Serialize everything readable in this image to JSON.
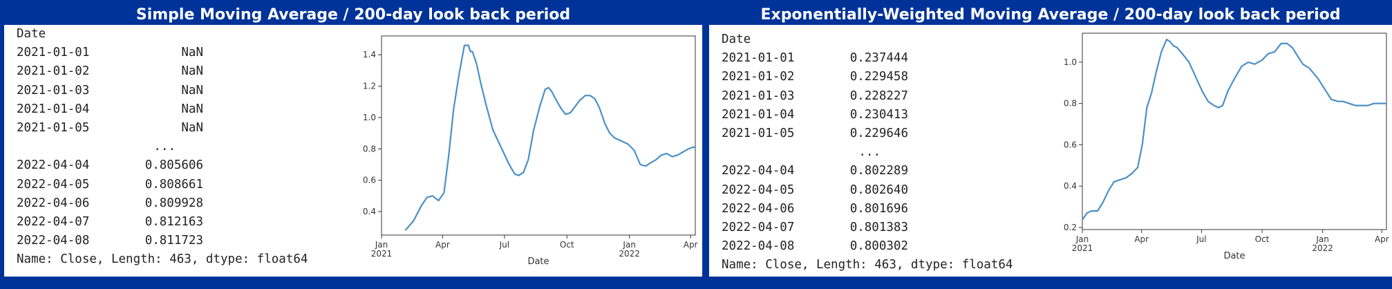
{
  "panels": [
    {
      "title": "Simple Moving Average / 200-day look back period",
      "series_text": {
        "index_name": "Date",
        "head": [
          {
            "date": "2021-01-01",
            "value": "NaN"
          },
          {
            "date": "2021-01-02",
            "value": "NaN"
          },
          {
            "date": "2021-01-03",
            "value": "NaN"
          },
          {
            "date": "2021-01-04",
            "value": "NaN"
          },
          {
            "date": "2021-01-05",
            "value": "NaN"
          }
        ],
        "ellipsis": "...",
        "tail": [
          {
            "date": "2022-04-04",
            "value": "0.805606"
          },
          {
            "date": "2022-04-05",
            "value": "0.808661"
          },
          {
            "date": "2022-04-06",
            "value": "0.809928"
          },
          {
            "date": "2022-04-07",
            "value": "0.812163"
          },
          {
            "date": "2022-04-08",
            "value": "0.811723"
          }
        ],
        "footer": "Name: Close, Length: 463, dtype: float64"
      }
    },
    {
      "title": "Exponentially-Weighted  Moving Average / 200-day look back period",
      "series_text": {
        "index_name": "Date",
        "head": [
          {
            "date": "2021-01-01",
            "value": "0.237444"
          },
          {
            "date": "2021-01-02",
            "value": "0.229458"
          },
          {
            "date": "2021-01-03",
            "value": "0.228227"
          },
          {
            "date": "2021-01-04",
            "value": "0.230413"
          },
          {
            "date": "2021-01-05",
            "value": "0.229646"
          }
        ],
        "ellipsis": "...",
        "tail": [
          {
            "date": "2022-04-04",
            "value": "0.802289"
          },
          {
            "date": "2022-04-05",
            "value": "0.802640"
          },
          {
            "date": "2022-04-06",
            "value": "0.801696"
          },
          {
            "date": "2022-04-07",
            "value": "0.801383"
          },
          {
            "date": "2022-04-08",
            "value": "0.800302"
          }
        ],
        "footer": "Name: Close, Length: 463, dtype: float64"
      }
    }
  ],
  "chart_data": [
    {
      "type": "line",
      "title": "",
      "xlabel": "Date",
      "ylabel": "",
      "xlim": [
        "2021-01-01",
        "2022-04-08"
      ],
      "ylim": [
        0.25,
        1.52
      ],
      "yticks": [
        0.4,
        0.6,
        0.8,
        1.0,
        1.2,
        1.4
      ],
      "ytick_labels": [
        "0.4",
        "0.6",
        "0.8",
        "1.0",
        "1.2",
        "1.4"
      ],
      "xticks": [
        {
          "date": "2021-01-01",
          "label": "Jan",
          "sublabel": "2021"
        },
        {
          "date": "2021-04-01",
          "label": "Apr",
          "sublabel": ""
        },
        {
          "date": "2021-07-01",
          "label": "Jul",
          "sublabel": ""
        },
        {
          "date": "2021-10-01",
          "label": "Oct",
          "sublabel": ""
        },
        {
          "date": "2022-01-01",
          "label": "Jan",
          "sublabel": "2022"
        },
        {
          "date": "2022-04-01",
          "label": "Apr",
          "sublabel": ""
        }
      ],
      "line_color": "#4a8fc7",
      "grid": false,
      "series": [
        {
          "x": [
            "2021-02-05",
            "2021-02-17",
            "2021-03-01",
            "2021-03-09",
            "2021-03-17",
            "2021-03-26",
            "2021-04-03",
            "2021-04-10",
            "2021-04-17",
            "2021-04-25",
            "2021-05-03",
            "2021-05-09",
            "2021-05-12",
            "2021-05-15",
            "2021-05-18",
            "2021-05-21",
            "2021-05-27",
            "2021-06-04",
            "2021-06-14",
            "2021-06-26",
            "2021-07-08",
            "2021-07-16",
            "2021-07-22",
            "2021-07-29",
            "2021-08-05",
            "2021-08-13",
            "2021-08-22",
            "2021-08-30",
            "2021-09-04",
            "2021-09-08",
            "2021-09-14",
            "2021-09-22",
            "2021-09-29",
            "2021-10-06",
            "2021-10-13",
            "2021-10-20",
            "2021-10-28",
            "2021-11-04",
            "2021-11-11",
            "2021-11-18",
            "2021-11-26",
            "2021-12-03",
            "2021-12-10",
            "2021-12-20",
            "2021-12-30",
            "2022-01-08",
            "2022-01-17",
            "2022-01-25",
            "2022-02-01",
            "2022-02-09",
            "2022-02-17",
            "2022-02-25",
            "2022-03-05",
            "2022-03-13",
            "2022-03-21",
            "2022-03-29",
            "2022-04-04",
            "2022-04-08"
          ],
          "y": [
            0.28,
            0.34,
            0.44,
            0.49,
            0.5,
            0.47,
            0.52,
            0.76,
            1.05,
            1.27,
            1.46,
            1.46,
            1.42,
            1.42,
            1.38,
            1.34,
            1.22,
            1.08,
            0.92,
            0.81,
            0.7,
            0.64,
            0.63,
            0.65,
            0.73,
            0.92,
            1.07,
            1.18,
            1.19,
            1.17,
            1.12,
            1.06,
            1.02,
            1.03,
            1.07,
            1.11,
            1.14,
            1.14,
            1.12,
            1.06,
            0.96,
            0.9,
            0.87,
            0.85,
            0.83,
            0.79,
            0.7,
            0.69,
            0.71,
            0.73,
            0.76,
            0.77,
            0.75,
            0.76,
            0.78,
            0.8,
            0.81,
            0.81
          ]
        }
      ]
    },
    {
      "type": "line",
      "title": "",
      "xlabel": "Date",
      "ylabel": "",
      "xlim": [
        "2021-01-01",
        "2022-04-08"
      ],
      "ylim": [
        0.19,
        1.14
      ],
      "yticks": [
        0.2,
        0.4,
        0.6,
        0.8,
        1.0
      ],
      "ytick_labels": [
        "0.2",
        "0.4",
        "0.6",
        "0.8",
        "1.0"
      ],
      "xticks": [
        {
          "date": "2021-01-01",
          "label": "Jan",
          "sublabel": "2021"
        },
        {
          "date": "2021-04-01",
          "label": "Apr",
          "sublabel": ""
        },
        {
          "date": "2021-07-01",
          "label": "Jul",
          "sublabel": ""
        },
        {
          "date": "2021-10-01",
          "label": "Oct",
          "sublabel": ""
        },
        {
          "date": "2022-01-01",
          "label": "Jan",
          "sublabel": "2022"
        },
        {
          "date": "2022-04-01",
          "label": "Apr",
          "sublabel": ""
        }
      ],
      "line_color": "#4a8fc7",
      "grid": false,
      "series": [
        {
          "x": [
            "2021-01-01",
            "2021-01-08",
            "2021-01-15",
            "2021-01-24",
            "2021-02-01",
            "2021-02-10",
            "2021-02-18",
            "2021-02-26",
            "2021-03-08",
            "2021-03-17",
            "2021-03-26",
            "2021-04-02",
            "2021-04-09",
            "2021-04-16",
            "2021-04-23",
            "2021-05-01",
            "2021-05-09",
            "2021-05-14",
            "2021-05-19",
            "2021-05-25",
            "2021-06-02",
            "2021-06-12",
            "2021-06-22",
            "2021-07-02",
            "2021-07-11",
            "2021-07-20",
            "2021-07-27",
            "2021-08-02",
            "2021-08-10",
            "2021-08-20",
            "2021-08-31",
            "2021-09-10",
            "2021-09-20",
            "2021-10-01",
            "2021-10-10",
            "2021-10-20",
            "2021-10-30",
            "2021-11-08",
            "2021-11-16",
            "2021-11-24",
            "2021-12-02",
            "2021-12-12",
            "2021-12-25",
            "2022-01-04",
            "2022-01-14",
            "2022-01-24",
            "2022-02-01",
            "2022-02-10",
            "2022-02-20",
            "2022-03-02",
            "2022-03-11",
            "2022-03-20",
            "2022-03-30",
            "2022-04-08"
          ],
          "y": [
            0.237,
            0.27,
            0.28,
            0.28,
            0.32,
            0.38,
            0.42,
            0.43,
            0.44,
            0.46,
            0.49,
            0.6,
            0.78,
            0.85,
            0.95,
            1.05,
            1.11,
            1.1,
            1.08,
            1.07,
            1.04,
            1.0,
            0.93,
            0.86,
            0.81,
            0.79,
            0.78,
            0.79,
            0.86,
            0.92,
            0.98,
            1.0,
            0.99,
            1.01,
            1.04,
            1.05,
            1.09,
            1.09,
            1.07,
            1.03,
            0.99,
            0.97,
            0.92,
            0.87,
            0.82,
            0.81,
            0.81,
            0.8,
            0.79,
            0.79,
            0.79,
            0.8,
            0.8,
            0.8
          ]
        }
      ]
    }
  ]
}
